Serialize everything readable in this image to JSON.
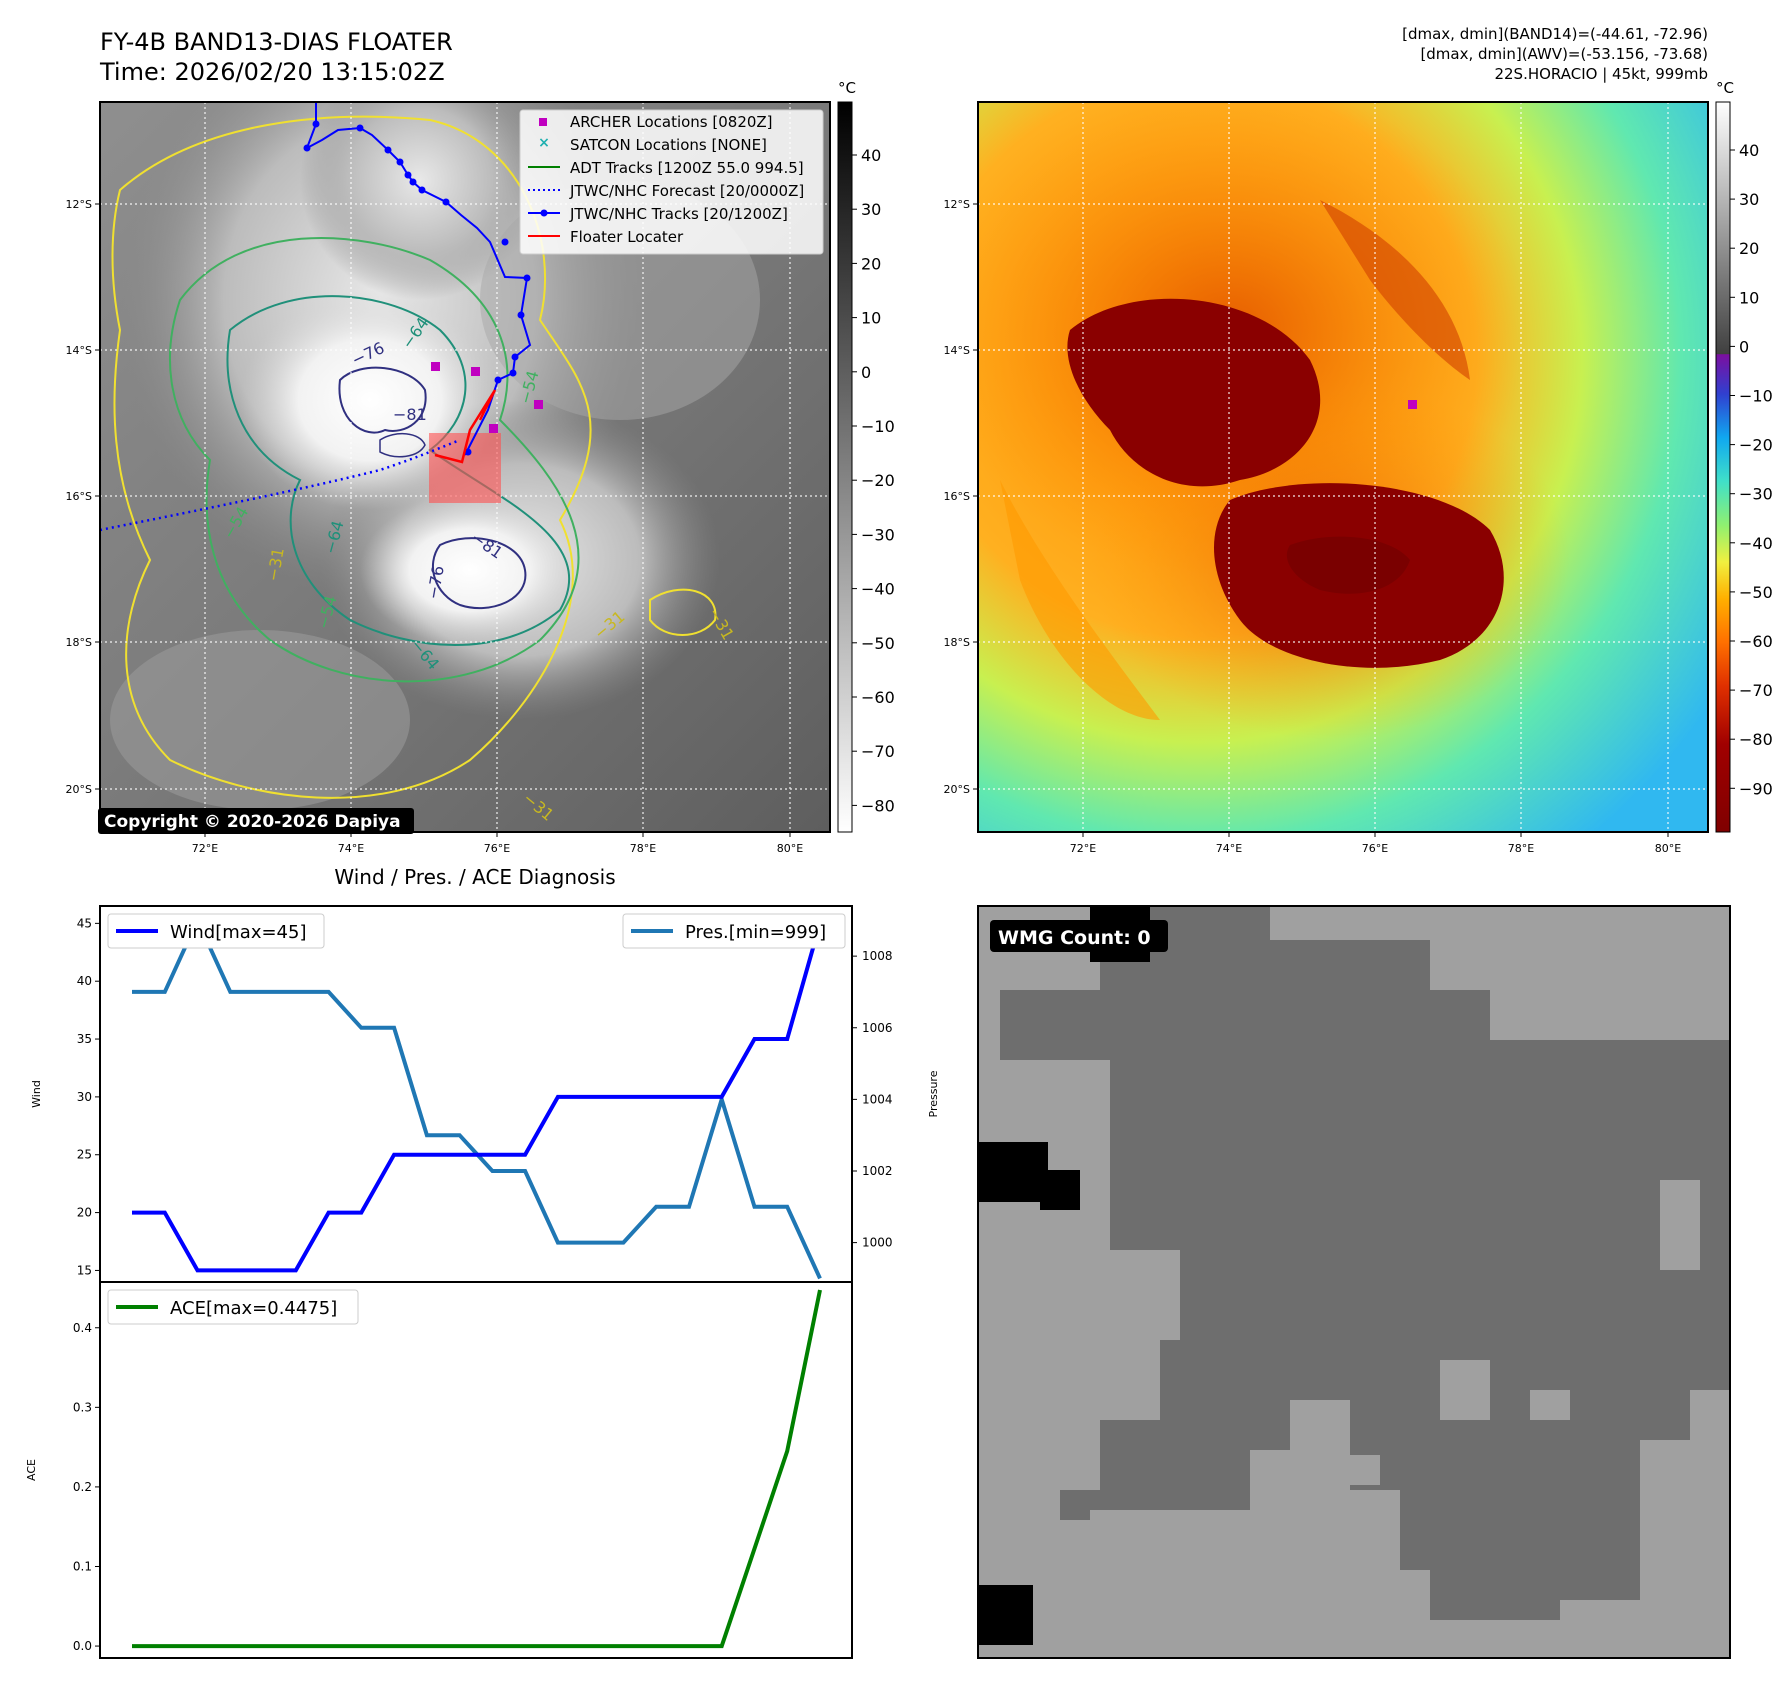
{
  "header": {
    "title_line1": "FY-4B BAND13-DIAS FLOATER",
    "title_line2": "Time: 2026/02/20 13:15:02Z",
    "info_line1": "[dmax, dmin](BAND14)=(-44.61, -72.96)",
    "info_line2": "[dmax, dmin](AWV)=(-53.156, -73.68)",
    "info_line3": "22S.HORACIO | 45kt, 999mb"
  },
  "map_axes": {
    "lat_labels": [
      "12°S",
      "14°S",
      "16°S",
      "18°S",
      "20°S"
    ],
    "lon_labels": [
      "72°E",
      "74°E",
      "76°E",
      "78°E",
      "80°E"
    ]
  },
  "ir_panel": {
    "copyright": "Copyright © 2020-2026 Dapiya",
    "colorbar_unit": "°C",
    "colorbar_ticks": [
      "40",
      "30",
      "20",
      "10",
      "0",
      "−10",
      "−20",
      "−30",
      "−40",
      "−50",
      "−60",
      "−70",
      "−80"
    ],
    "contour_labels": [
      "−76",
      "−64",
      "−81",
      "−54",
      "−54",
      "−64",
      "−31",
      "−81",
      "−76",
      "−54",
      "−64",
      "−31",
      "−31",
      "−31"
    ],
    "legend": [
      {
        "label": "ARCHER Locations [0820Z]",
        "color": "#c000c0"
      },
      {
        "label": "SATCON Locations [NONE]",
        "color": "#20b0b0"
      },
      {
        "label": "ADT Tracks [1200Z 55.0 994.5]",
        "color": "#008000"
      },
      {
        "label": "JTWC/NHC Forecast [20/0000Z]",
        "color": "#0000ff"
      },
      {
        "label": "JTWC/NHC Tracks [20/1200Z]",
        "color": "#0000ff"
      },
      {
        "label": "Floater Locater",
        "color": "#ff0000"
      }
    ]
  },
  "enh_panel": {
    "colorbar_unit": "°C",
    "colorbar_ticks": [
      "40",
      "30",
      "20",
      "10",
      "0",
      "−10",
      "−20",
      "−30",
      "−40",
      "−50",
      "−60",
      "−70",
      "−80",
      "−90"
    ]
  },
  "chart_data": [
    {
      "type": "line",
      "title": "Wind / Pres. / ACE Diagnosis",
      "ylabel": "Wind",
      "ylabel_right": "Pressure",
      "x": [
        0,
        1,
        2,
        3,
        4,
        5,
        6,
        7,
        8,
        9,
        10,
        11,
        12,
        13,
        14,
        15,
        16,
        17,
        18,
        19,
        20,
        21
      ],
      "ylim": [
        14.0,
        46.5
      ],
      "ylim_right": [
        998.9,
        1009.4
      ],
      "yticks": [
        "15",
        "20",
        "25",
        "30",
        "35",
        "40",
        "45"
      ],
      "yticks_right": [
        "1000",
        "1002",
        "1004",
        "1006",
        "1008"
      ],
      "series": [
        {
          "name": "Wind[max=45]",
          "color": "#0000ff",
          "axis": "left",
          "values": [
            20,
            20,
            15,
            15,
            15,
            15,
            20,
            20,
            25,
            25,
            25,
            25,
            25,
            30,
            30,
            30,
            30,
            30,
            30,
            35,
            35,
            45
          ]
        },
        {
          "name": "Pres.[min=999]",
          "color": "#1f77b4",
          "axis": "right",
          "values": [
            1007,
            1007,
            1009,
            1007,
            1007,
            1007,
            1007,
            1006,
            1006,
            1003,
            1003,
            1002,
            1002,
            1000,
            1000,
            1000,
            1001,
            1001,
            1004,
            1001,
            1001,
            999
          ]
        }
      ]
    },
    {
      "type": "line",
      "ylabel": "ACE",
      "x": [
        0,
        1,
        2,
        3,
        4,
        5,
        6,
        7,
        8,
        9,
        10,
        11,
        12,
        13,
        14,
        15,
        16,
        17,
        18,
        19,
        20,
        21
      ],
      "ylim": [
        -0.015,
        0.4575
      ],
      "yticks": [
        "0.0",
        "0.1",
        "0.2",
        "0.3",
        "0.4"
      ],
      "series": [
        {
          "name": "ACE[max=0.4475]",
          "color": "#008000",
          "values": [
            0,
            0,
            0,
            0,
            0,
            0,
            0,
            0,
            0,
            0,
            0,
            0,
            0,
            0,
            0,
            0,
            0,
            0,
            0,
            0.1225,
            0.245,
            0.4475
          ]
        }
      ]
    }
  ],
  "wmg_panel": {
    "badge": "WMG Count: 0"
  }
}
